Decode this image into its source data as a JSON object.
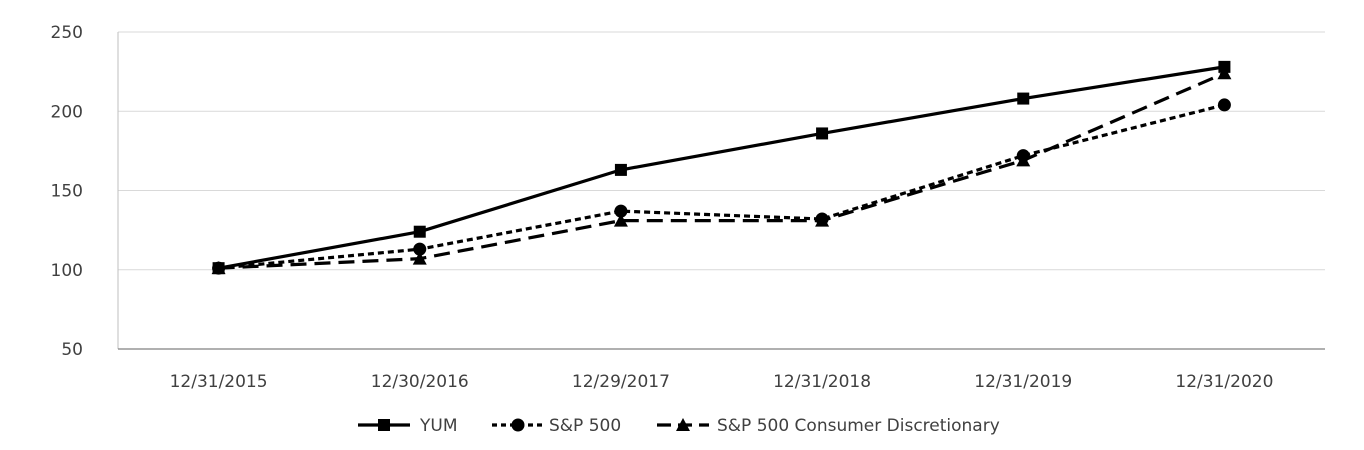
{
  "chart_data": {
    "type": "line",
    "title": "",
    "xlabel": "",
    "ylabel": "",
    "categories": [
      "12/31/2015",
      "12/30/2016",
      "12/29/2017",
      "12/31/2018",
      "12/31/2019",
      "12/31/2020"
    ],
    "ylim": [
      50,
      250
    ],
    "yticks": [
      50,
      100,
      150,
      200,
      250
    ],
    "grid": true,
    "legend_position": "bottom",
    "series": [
      {
        "name": "YUM",
        "values": [
          101,
          124,
          163,
          186,
          208,
          228
        ],
        "line_style": "solid",
        "marker": "square",
        "color": "#000000"
      },
      {
        "name": "S&P 500",
        "values": [
          101,
          113,
          137,
          132,
          172,
          204
        ],
        "line_style": "dotted",
        "marker": "circle",
        "color": "#000000"
      },
      {
        "name": "S&P 500 Consumer Discretionary",
        "values": [
          101,
          107,
          131,
          131,
          169,
          224
        ],
        "line_style": "dashed",
        "marker": "triangle",
        "color": "#000000"
      }
    ]
  }
}
